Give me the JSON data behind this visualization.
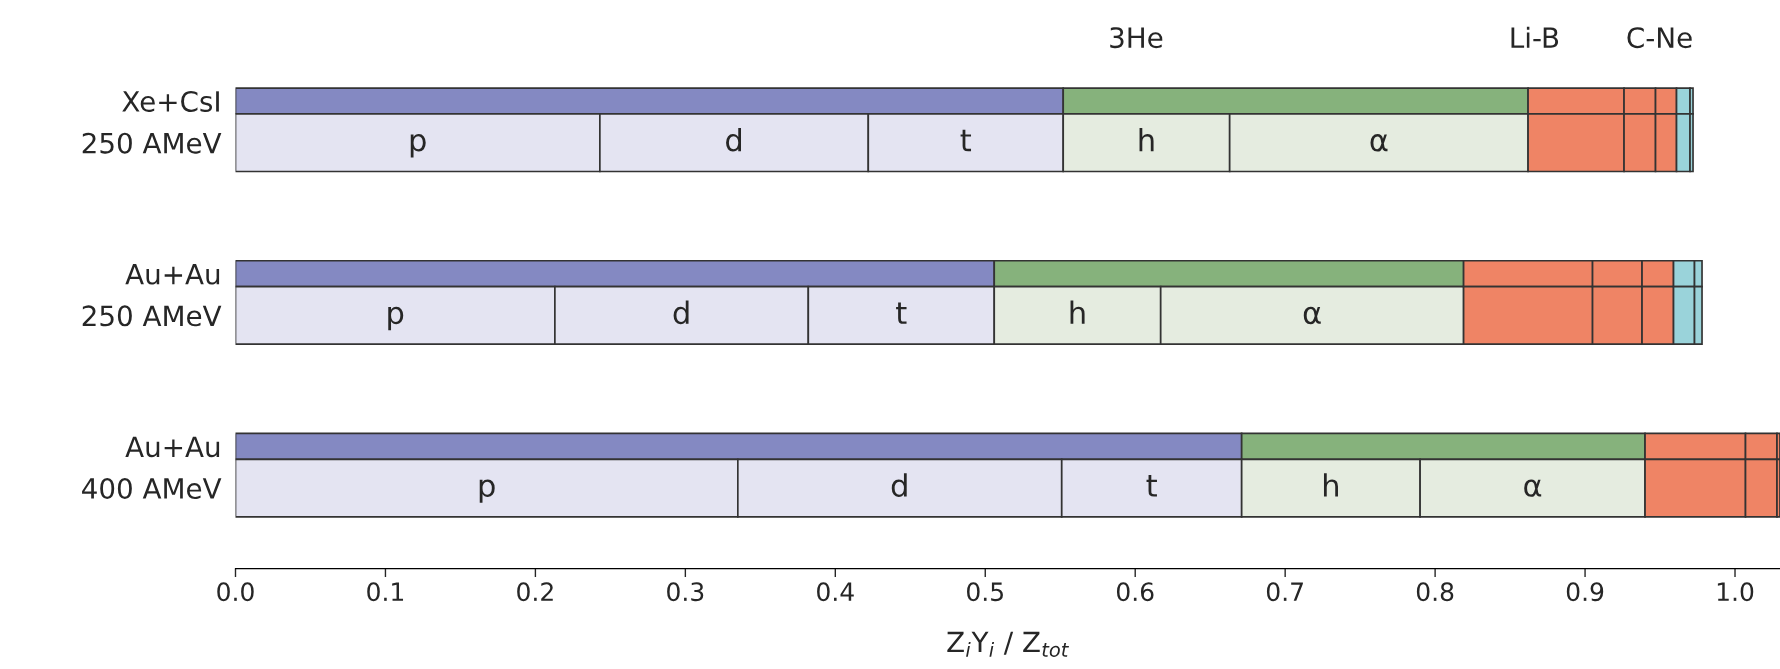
{
  "chart_data": {
    "type": "bar",
    "orientation": "horizontal",
    "stacked": true,
    "categories": [
      "Xe+CsI",
      "250 AMeV",
      "Au+Au",
      "250 AMeV",
      "Au+Au",
      "400 AMeV"
    ],
    "series": [
      {
        "color": "#8489c2",
        "values": [
          0.552,
          null,
          0.506,
          null,
          0.671,
          null
        ]
      },
      {
        "color": "#86b27c",
        "values": [
          0.31,
          null,
          0.313,
          null,
          0.269,
          null
        ]
      },
      {
        "name": "p",
        "color": "#e4e4f2",
        "values": [
          null,
          0.243,
          null,
          0.213,
          null,
          0.335
        ]
      },
      {
        "name": "d",
        "color": "#e4e4f2",
        "values": [
          null,
          0.179,
          null,
          0.169,
          null,
          0.216
        ]
      },
      {
        "name": "t",
        "color": "#e4e4f2",
        "values": [
          null,
          0.13,
          null,
          0.124,
          null,
          0.12
        ]
      },
      {
        "name": "h",
        "color": "#e5ece0",
        "values": [
          null,
          0.111,
          null,
          0.111,
          null,
          0.119
        ]
      },
      {
        "name": "α",
        "color": "#e5ece0",
        "values": [
          null,
          0.199,
          null,
          0.202,
          null,
          0.15
        ]
      },
      {
        "color": "#ef8465",
        "values": [
          0.064,
          0.064,
          0.086,
          0.086,
          0.067,
          0.067
        ]
      },
      {
        "color": "#ef8465",
        "values": [
          0.021,
          0.021,
          0.033,
          0.033,
          0.021,
          0.021
        ]
      },
      {
        "color": "#ef8465",
        "values": [
          0.014,
          0.014,
          0.021,
          0.021,
          0.002,
          0.002
        ]
      },
      {
        "color": "#9ad3da",
        "values": [
          0.009,
          0.009,
          0.014,
          0.014,
          null,
          null
        ]
      },
      {
        "color": "#9ad3da",
        "values": [
          0.002,
          0.002,
          0.005,
          0.005,
          null,
          null
        ]
      }
    ],
    "xlim": [
      0,
      1.03
    ],
    "xticks": [
      {
        "value": 0,
        "label": "0.0"
      },
      0.1,
      0.2,
      0.3,
      0.4,
      0.5,
      0.6,
      0.7,
      0.8,
      0.9,
      {
        "value": 1,
        "label": "1.0"
      }
    ],
    "xlabel": "Z$_{i}$Y$_{i}$ / Z$_{tot}$",
    "annotations": [
      "3He",
      "Li-B",
      "C-Ne"
    ]
  }
}
